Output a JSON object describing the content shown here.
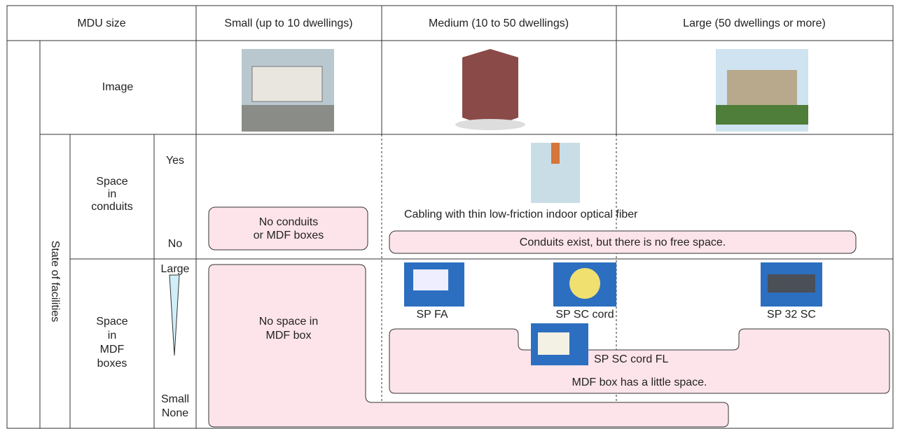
{
  "header": {
    "mdu_size": "MDU size",
    "columns": [
      "Small (up to 10 dwellings)",
      "Medium (10 to 50 dwellings)",
      "Large (50 dwellings or more)"
    ]
  },
  "image_row": {
    "label": "Image"
  },
  "state": {
    "label": "State of facilities",
    "conduits": {
      "label_lines": [
        "Space",
        "in",
        "conduits"
      ],
      "levels": [
        "Yes",
        "No"
      ]
    },
    "mdf": {
      "label_lines": [
        "Space",
        "in",
        "MDF",
        "boxes"
      ],
      "levels": [
        "Large",
        "Small",
        "None"
      ]
    }
  },
  "boxes": {
    "no_conduits": [
      "No conduits",
      "or MDF boxes"
    ],
    "conduits_no_space": "Conduits exist, but there is no free space.",
    "no_mdf_space": [
      "No space in",
      "MDF box"
    ],
    "mdf_little_space": "MDF box has a little space."
  },
  "captions": {
    "cabling": "Cabling with thin low-friction indoor optical fiber",
    "sp_fa": "SP FA",
    "sp_sc_cord": "SP SC cord",
    "sp_32_sc": "SP 32 SC",
    "sp_sc_cord_fl": "SP SC cord FL"
  }
}
